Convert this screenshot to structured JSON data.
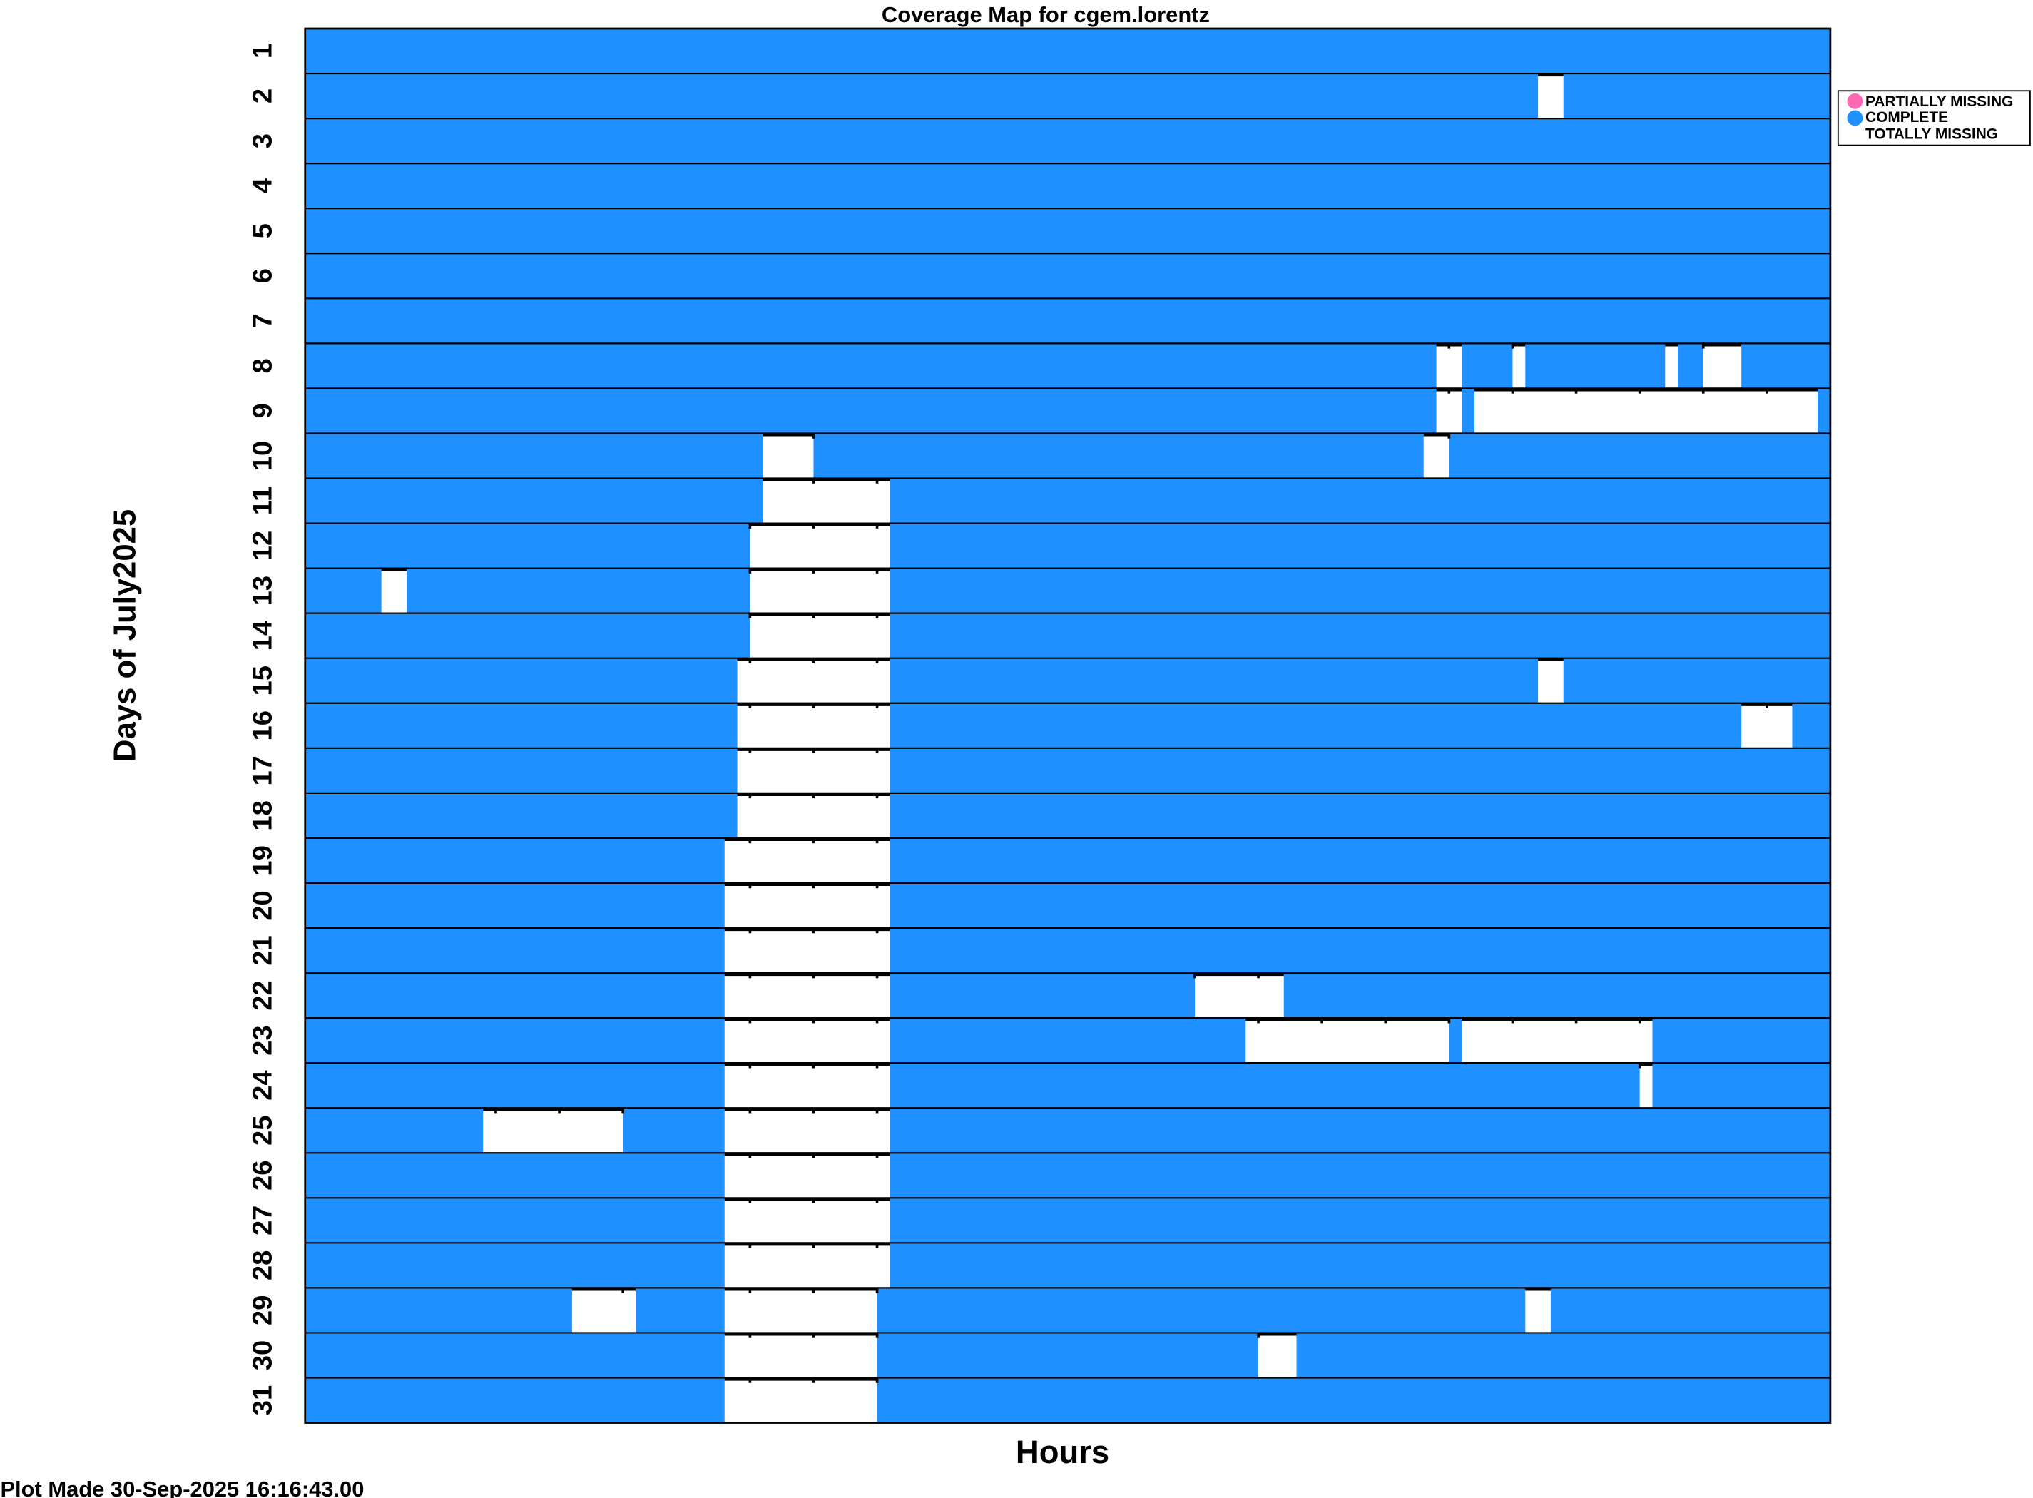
{
  "chart_data": {
    "type": "coverage-map",
    "title": "Coverage Map for cgem.lorentz",
    "xlabel": "Hours",
    "ylabel": "Days of July2025",
    "xlim": [
      0,
      24
    ],
    "days": [
      1,
      2,
      3,
      4,
      5,
      6,
      7,
      8,
      9,
      10,
      11,
      12,
      13,
      14,
      15,
      16,
      17,
      18,
      19,
      20,
      21,
      22,
      23,
      24,
      25,
      26,
      27,
      28,
      29,
      30,
      31
    ],
    "legend": [
      {
        "label": "PARTIALLY MISSING",
        "color": "#ff69b4"
      },
      {
        "label": "COMPLETE",
        "color": "#1e90ff"
      },
      {
        "label": "TOTALLY MISSING",
        "color": "#ffffff"
      }
    ],
    "legend_position": "right",
    "missing_intervals_hours": {
      "2": [
        [
          19.4,
          19.8
        ]
      ],
      "8": [
        [
          17.8,
          18.2
        ],
        [
          19.0,
          19.2
        ],
        [
          21.4,
          21.6
        ],
        [
          22.0,
          22.6
        ]
      ],
      "9": [
        [
          17.8,
          18.2
        ],
        [
          18.4,
          23.8
        ]
      ],
      "10": [
        [
          7.2,
          8.0
        ],
        [
          17.6,
          18.0
        ]
      ],
      "11": [
        [
          7.2,
          9.2
        ]
      ],
      "12": [
        [
          7.0,
          9.2
        ]
      ],
      "13": [
        [
          1.2,
          1.6
        ],
        [
          7.0,
          9.2
        ]
      ],
      "14": [
        [
          7.0,
          9.2
        ]
      ],
      "15": [
        [
          6.8,
          9.2
        ],
        [
          19.4,
          19.8
        ]
      ],
      "16": [
        [
          6.8,
          9.2
        ],
        [
          22.6,
          23.4
        ]
      ],
      "17": [
        [
          6.8,
          9.2
        ]
      ],
      "18": [
        [
          6.8,
          9.2
        ]
      ],
      "19": [
        [
          6.6,
          9.2
        ]
      ],
      "20": [
        [
          6.6,
          9.2
        ]
      ],
      "21": [
        [
          6.6,
          9.2
        ]
      ],
      "22": [
        [
          6.6,
          9.2
        ],
        [
          14.0,
          15.4
        ]
      ],
      "23": [
        [
          6.6,
          9.2
        ],
        [
          14.8,
          18.0
        ],
        [
          18.2,
          21.2
        ]
      ],
      "24": [
        [
          6.6,
          9.2
        ],
        [
          21.0,
          21.2
        ]
      ],
      "25": [
        [
          2.8,
          5.0
        ],
        [
          6.6,
          9.2
        ]
      ],
      "26": [
        [
          6.6,
          9.2
        ]
      ],
      "27": [
        [
          6.6,
          9.2
        ]
      ],
      "28": [
        [
          6.6,
          9.2
        ]
      ],
      "29": [
        [
          4.2,
          5.2
        ],
        [
          6.6,
          9.0
        ],
        [
          19.2,
          19.6
        ]
      ],
      "30": [
        [
          6.6,
          9.0
        ],
        [
          15.0,
          15.6
        ]
      ],
      "31": [
        [
          6.6,
          9.0
        ]
      ]
    },
    "colors": {
      "complete": "#1e90ff",
      "missing": "#ffffff",
      "partial": "#ff69b4"
    }
  },
  "footer": "Plot Made 30-Sep-2025 16:16:43.00"
}
